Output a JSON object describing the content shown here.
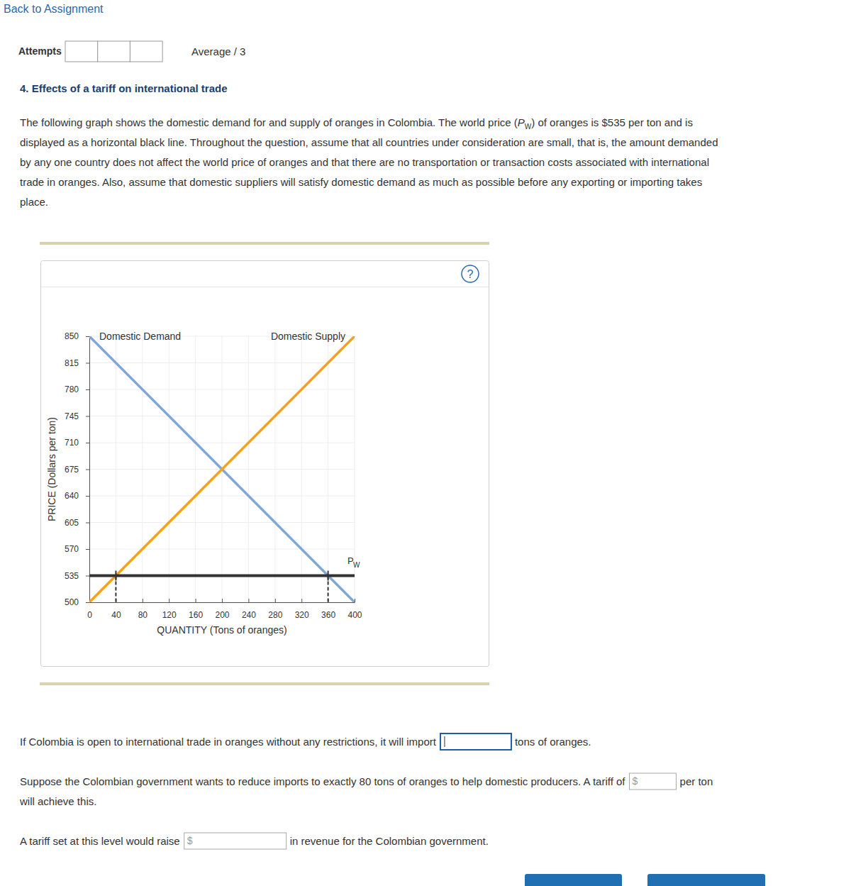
{
  "page": {
    "back_link": "Back to Assignment",
    "attempts_label": "Attempts",
    "average": "Average / 3",
    "question_title": "4. Effects of a tariff on international trade",
    "intro": {
      "line1_before": "The following graph shows the domestic demand for and supply of oranges in Colombia. The world price (",
      "symbol": "P",
      "symbol_sub": "W",
      "line1_after": ") of oranges is $535 per ton and is",
      "rest_lines": [
        "displayed as a horizontal black line. Throughout the question, assume that all countries under consideration are small, that is, the amount demanded",
        "by any one country does not affect the world price of oranges and that there are no transportation or transaction costs associated with international",
        "trade in oranges. Also, assume that domestic suppliers will satisfy domestic demand as much as possible before any exporting or importing takes",
        "place."
      ]
    },
    "help_icon": "?",
    "questions": [
      {
        "before": "If Colombia is open to international trade in oranges without any restrictions, it will import",
        "after": "tons of oranges."
      },
      {
        "before": "Suppose the Colombian government wants to reduce imports to exactly 80 tons of oranges to help domestic producers. A tariff of",
        "currency": "$",
        "after": "per ton",
        "continuation": "will achieve this."
      },
      {
        "before": "A tariff set at this level would raise",
        "currency": "$",
        "after": "in revenue for the Colombian government."
      }
    ]
  },
  "chart_data": {
    "type": "line",
    "x_label": "QUANTITY (Tons of oranges)",
    "y_label": "PRICE (Dollars per ton)",
    "x": [
      0,
      400
    ],
    "xlim": [
      0,
      400
    ],
    "ylim": [
      500,
      850
    ],
    "xticks": [
      0,
      40,
      80,
      120,
      160,
      200,
      240,
      280,
      320,
      360,
      400
    ],
    "yticks": [
      500,
      535,
      570,
      605,
      640,
      675,
      710,
      745,
      780,
      815,
      850
    ],
    "grid": true,
    "series": [
      {
        "name": "Domestic Demand",
        "color": "#7fa8d5",
        "values": [
          850,
          500
        ]
      },
      {
        "name": "Domestic Supply",
        "color": "#f7a11a",
        "values": [
          500,
          850
        ]
      },
      {
        "name": "P",
        "subscript": "W",
        "color": "#333333",
        "values": [
          535,
          535
        ]
      }
    ],
    "drop_lines": {
      "x": [
        40,
        360
      ],
      "y": 535
    }
  }
}
